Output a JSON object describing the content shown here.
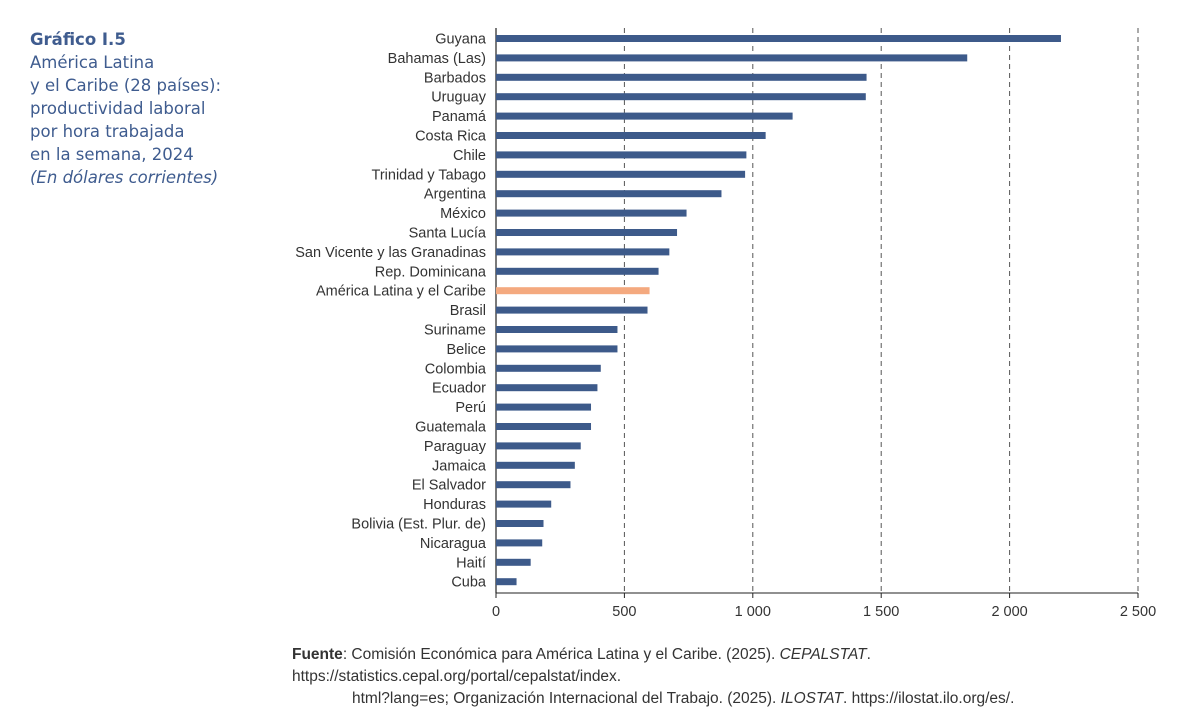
{
  "title": {
    "number": "Gráfico I.5",
    "lines": [
      "América Latina",
      "y el Caribe (28 países):",
      "productividad laboral",
      "por hora trabajada",
      "en la semana, 2024"
    ],
    "units": "(En dólares corrientes)"
  },
  "colors": {
    "bar": "#3d5a8a",
    "highlight": "#f4a97f",
    "title": "#3f5c8f",
    "grid": "#555555",
    "text": "#333333"
  },
  "chart_data": {
    "type": "bar",
    "orientation": "horizontal",
    "title": "América Latina y el Caribe (28 países): productividad laboral por hora trabajada en la semana, 2024",
    "xlabel": "",
    "ylabel": "",
    "xlim": [
      0,
      2500
    ],
    "xticks": [
      0,
      500,
      1000,
      1500,
      2000,
      2500
    ],
    "xtick_labels": [
      "0",
      "500",
      "1 000",
      "1 500",
      "2 000",
      "2 500"
    ],
    "grid": "vertical dashed",
    "highlight": "América Latina y el Caribe",
    "categories": [
      "Guyana",
      "Bahamas (Las)",
      "Barbados",
      "Uruguay",
      "Panamá",
      "Costa Rica",
      "Chile",
      "Trinidad y Tabago",
      "Argentina",
      "México",
      "Santa Lucía",
      "San Vicente y las Granadinas",
      "Rep. Dominicana",
      "América Latina y el Caribe",
      "Brasil",
      "Suriname",
      "Belice",
      "Colombia",
      "Ecuador",
      "Perú",
      "Guatemala",
      "Paraguay",
      "Jamaica",
      "El Salvador",
      "Honduras",
      "Bolivia (Est. Plur. de)",
      "Nicaragua",
      "Haití",
      "Cuba"
    ],
    "values": [
      2200,
      1835,
      1443,
      1440,
      1155,
      1050,
      975,
      970,
      878,
      742,
      705,
      675,
      633,
      598,
      590,
      473,
      473,
      408,
      395,
      370,
      370,
      330,
      307,
      290,
      215,
      185,
      180,
      135,
      80
    ]
  },
  "source": {
    "label": "Fuente",
    "line1_a": ": Comisión Económica para América Latina y el Caribe. (2025). ",
    "line1_italic": "CEPALSTAT",
    "line1_b": ". https://statistics.cepal.org/portal/cepalstat/index.",
    "line2_a": "html?lang=es; Organización Internacional del Trabajo. (2025). ",
    "line2_italic": "ILOSTAT",
    "line2_b": ". https://ilostat.ilo.org/es/."
  }
}
